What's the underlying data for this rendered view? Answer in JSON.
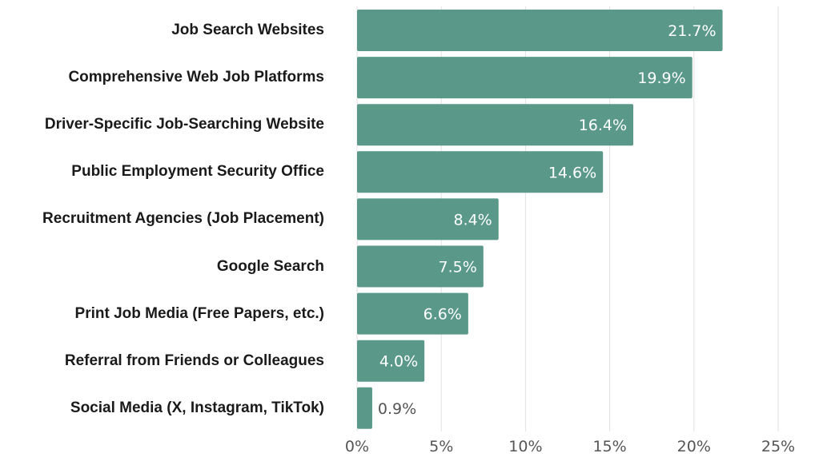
{
  "chart_data": {
    "type": "bar",
    "orientation": "horizontal",
    "title": "",
    "xlabel": "",
    "ylabel": "",
    "categories": [
      "Job Search Websites",
      "Comprehensive Web Job Platforms",
      "Driver-Specific Job-Searching Website",
      "Public Employment Security Office",
      "Recruitment Agencies (Job Placement)",
      "Google Search",
      "Print Job Media (Free Papers, etc.)",
      "Referral from Friends or Colleagues",
      "Social Media (X, Instagram, TikTok)"
    ],
    "values": [
      21.7,
      19.9,
      16.4,
      14.6,
      8.4,
      7.5,
      6.6,
      4.0,
      0.9
    ],
    "value_labels": [
      "21.7%",
      "19.9%",
      "16.4%",
      "14.6%",
      "8.4%",
      "7.5%",
      "6.6%",
      "4.0%",
      "0.9%"
    ],
    "xlim": [
      0,
      25
    ],
    "x_ticks": [
      0,
      5,
      10,
      15,
      20,
      25
    ],
    "x_tick_labels": [
      "0%",
      "5%",
      "10%",
      "15%",
      "20%",
      "25%"
    ],
    "grid": "vertical",
    "legend": "none",
    "bar_color": "#5a998a",
    "grid_color": "#e2e2e2"
  }
}
